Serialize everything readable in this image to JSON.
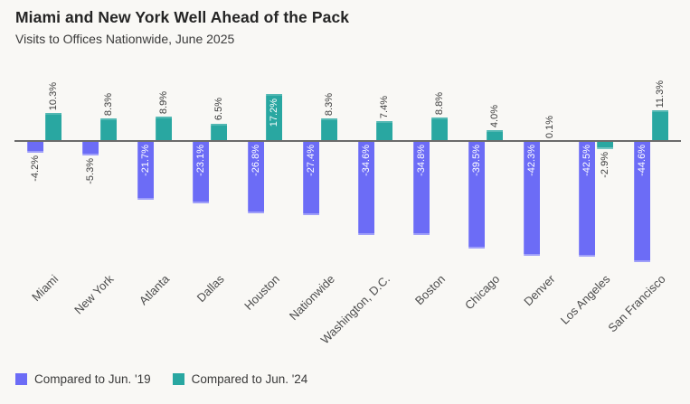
{
  "header": {
    "title": "Miami and New York Well Ahead of the Pack",
    "subtitle": "Visits to Offices Nationwide, June 2025"
  },
  "chart_data": {
    "type": "bar",
    "title": "Miami and New York Well Ahead of the Pack",
    "subtitle": "Visits to Offices Nationwide, June 2025",
    "categories": [
      "Miami",
      "New York",
      "Atlanta",
      "Dallas",
      "Houston",
      "Nationwide",
      "Washington, D.C.",
      "Boston",
      "Chicago",
      "Denver",
      "Los Angeles",
      "San Francisco"
    ],
    "series": [
      {
        "name": "Compared to Jun. '19",
        "color": "#6c6cf6",
        "values": [
          -4.2,
          -5.3,
          -21.7,
          -23.1,
          -26.8,
          -27.4,
          -34.6,
          -34.8,
          -39.5,
          -42.3,
          -42.5,
          -44.6
        ]
      },
      {
        "name": "Compared to Jun. '24",
        "color": "#29a7a1",
        "values": [
          10.3,
          8.3,
          8.9,
          6.5,
          17.2,
          8.3,
          7.4,
          8.8,
          4.0,
          0.1,
          -2.9,
          11.3
        ]
      }
    ],
    "value_suffix": "%",
    "value_decimals": 1,
    "ylim": [
      -44.6,
      17.2
    ],
    "grid": false,
    "baseline": 0,
    "baseline_color": "#6b6b6b",
    "legend_position": "bottom-left",
    "value_label_rotation": -90,
    "category_label_rotation": -45,
    "label_color_dark": "#3d3d3d",
    "label_color_light": "#ffffff",
    "background_color": "#f9f8f5"
  }
}
